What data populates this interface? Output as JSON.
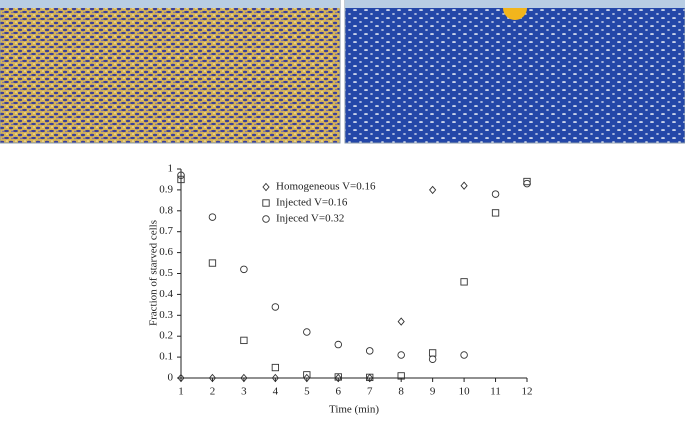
{
  "chart_data": {
    "type": "scatter",
    "x_label": "Time (min)",
    "y_label": "Fraction of starved cells",
    "x": [
      1,
      2,
      3,
      4,
      5,
      6,
      7,
      8,
      9,
      10,
      11,
      12
    ],
    "series": [
      {
        "name": "Homogeneous V=0.16",
        "marker": "diamond",
        "color": "#333333",
        "values": [
          0,
          0,
          0,
          0,
          0,
          0,
          0,
          0.27,
          0.9,
          0.92,
          null,
          null
        ]
      },
      {
        "name": "Injected V=0.16",
        "marker": "square",
        "color": "#333333",
        "values": [
          0.95,
          0.55,
          0.18,
          0.05,
          0.015,
          0.005,
          0.003,
          0.01,
          0.12,
          0.46,
          0.79,
          0.94
        ]
      },
      {
        "name": "Injeced V=0.32",
        "marker": "circle",
        "color": "#333333",
        "values": [
          0.97,
          0.77,
          0.52,
          0.34,
          0.22,
          0.16,
          0.13,
          0.11,
          0.09,
          0.11,
          0.88,
          0.93
        ]
      }
    ],
    "xlim": [
      1,
      12
    ],
    "xticks": [
      1,
      2,
      3,
      4,
      5,
      6,
      7,
      8,
      9,
      10,
      11,
      12
    ],
    "ylim": [
      0,
      1
    ],
    "yticks": [
      0,
      0.1,
      0.2,
      0.3,
      0.4,
      0.5,
      0.6,
      0.7,
      0.8,
      0.9,
      1
    ],
    "grid": false
  }
}
